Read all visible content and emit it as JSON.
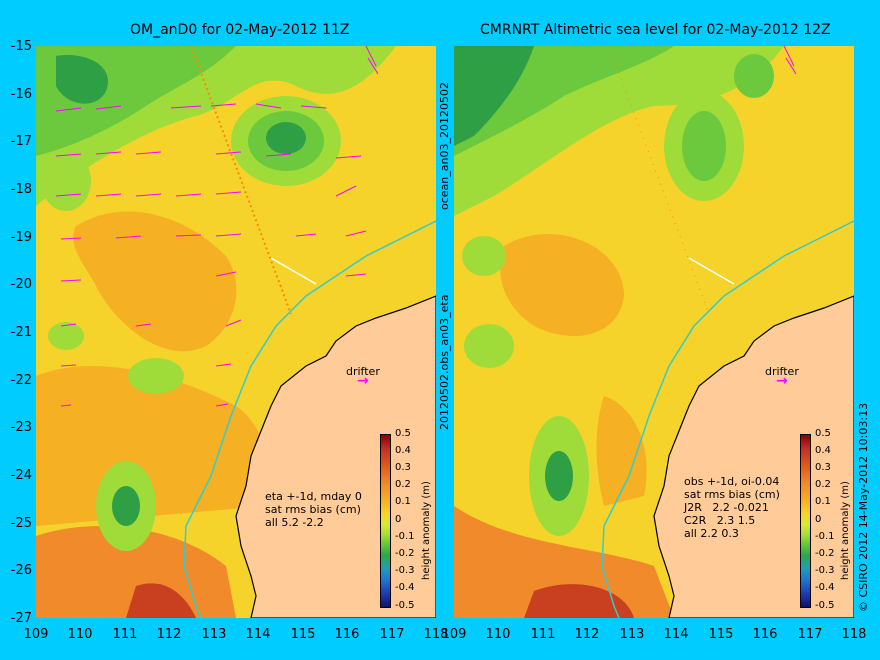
{
  "left_panel": {
    "title": "OM_anD0 for 02-May-2012 11Z",
    "side_label": "20120502.obs_an03_eta",
    "side_label_top": "ocean_an03_20120502",
    "annotation": "eta +-1d, mday 0\nsat rms bias (cm)\nall 5.2 -2.2",
    "drifter_label": "drifter"
  },
  "right_panel": {
    "title": "CMRNRT Altimetric sea level  for 02-May-2012 12Z",
    "annotation": "obs +-1d, oi-0.04\nsat rms bias (cm)\nJ2R   2.2 -0.021\nC2R   2.3 1.5\nall 2.2 0.3",
    "drifter_label": "drifter",
    "side_label": "© CSIRO 2012  14-May-2012 10:03:13"
  },
  "axes": {
    "y_ticks": [
      "-15",
      "-16",
      "-17",
      "-18",
      "-19",
      "-20",
      "-21",
      "-22",
      "-23",
      "-24",
      "-25",
      "-26",
      "-27"
    ],
    "x_ticks": [
      "109",
      "110",
      "111",
      "112",
      "113",
      "114",
      "115",
      "116",
      "117",
      "118"
    ]
  },
  "colorbar": {
    "label": "height anomaly (m)",
    "ticks": [
      "0.5",
      "0.4",
      "0.3",
      "0.2",
      "0.1",
      "0",
      "-0.1",
      "-0.2",
      "-0.3",
      "-0.4",
      "-0.5"
    ]
  },
  "colors": {
    "background": "#00ccff",
    "land": "#ffcc99",
    "vector": "#ff00ff",
    "track": "#ff8800"
  }
}
